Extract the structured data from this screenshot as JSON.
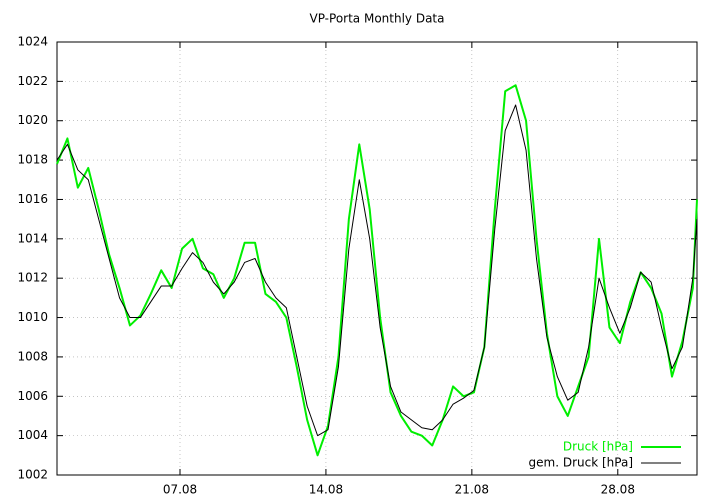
{
  "chart_data": {
    "type": "line",
    "title": "VP-Porta Monthly Data",
    "x": [
      1.1,
      1.6,
      2.1,
      2.6,
      3.1,
      3.6,
      4.1,
      4.6,
      5.1,
      5.6,
      6.1,
      6.6,
      7.1,
      7.6,
      8.1,
      8.6,
      9.1,
      9.6,
      10.1,
      10.6,
      11.1,
      11.6,
      12.1,
      12.6,
      13.1,
      13.6,
      14.1,
      14.6,
      15.1,
      15.6,
      16.1,
      16.6,
      17.1,
      17.6,
      18.1,
      18.6,
      19.1,
      19.6,
      20.1,
      20.6,
      21.1,
      21.6,
      22.1,
      22.6,
      23.1,
      23.6,
      24.1,
      24.6,
      25.1,
      25.6,
      26.1,
      26.6,
      27.1,
      27.6,
      28.1,
      28.6,
      29.1,
      29.6,
      30.1,
      30.6,
      31.1,
      31.6,
      31.8
    ],
    "series": [
      {
        "name": "Druck [hPa]",
        "color": "#00ee00",
        "values": [
          1017.8,
          1019.1,
          1016.6,
          1017.6,
          1015.5,
          1013.2,
          1011.5,
          1009.6,
          1010.1,
          1011.2,
          1012.4,
          1011.5,
          1013.5,
          1014.0,
          1012.5,
          1012.2,
          1011.0,
          1012.0,
          1013.8,
          1013.8,
          1011.2,
          1010.8,
          1010.0,
          1007.5,
          1004.8,
          1003.0,
          1004.5,
          1008.0,
          1015.0,
          1018.8,
          1015.5,
          1010.0,
          1006.2,
          1005.0,
          1004.2,
          1004.0,
          1003.5,
          1004.8,
          1006.5,
          1006.0,
          1006.2,
          1008.5,
          1015.5,
          1021.5,
          1021.8,
          1020.0,
          1014.0,
          1009.2,
          1006.0,
          1005.0,
          1006.5,
          1008.0,
          1014.0,
          1009.5,
          1008.7,
          1010.8,
          1012.3,
          1011.5,
          1010.2,
          1007.0,
          1008.8,
          1011.5,
          1016.0
        ]
      },
      {
        "name": "gem. Druck [hPa]",
        "color": "#000000",
        "values": [
          1018.0,
          1018.8,
          1017.5,
          1017.0,
          1015.0,
          1013.0,
          1011.0,
          1010.0,
          1010.0,
          1010.8,
          1011.6,
          1011.6,
          1012.5,
          1013.3,
          1012.8,
          1011.8,
          1011.2,
          1011.8,
          1012.8,
          1013.0,
          1011.8,
          1011.0,
          1010.5,
          1008.0,
          1005.5,
          1004.0,
          1004.3,
          1007.5,
          1013.5,
          1017.0,
          1014.0,
          1009.5,
          1006.5,
          1005.2,
          1004.8,
          1004.4,
          1004.3,
          1004.8,
          1005.6,
          1005.9,
          1006.3,
          1008.5,
          1014.5,
          1019.5,
          1020.8,
          1018.5,
          1013.0,
          1009.0,
          1007.0,
          1005.8,
          1006.2,
          1008.5,
          1012.0,
          1010.5,
          1009.2,
          1010.5,
          1012.3,
          1011.8,
          1009.5,
          1007.4,
          1008.5,
          1012.0,
          1015.0
        ]
      }
    ],
    "xlim": [
      1.1,
      31.8
    ],
    "xticks": [
      {
        "value": 7,
        "label": "07.08"
      },
      {
        "value": 14,
        "label": "14.08"
      },
      {
        "value": 21,
        "label": "21.08"
      },
      {
        "value": 28,
        "label": "28.08"
      }
    ],
    "ylim": [
      1002,
      1024
    ],
    "yticks": [
      1002,
      1004,
      1006,
      1008,
      1010,
      1012,
      1014,
      1016,
      1018,
      1020,
      1022,
      1024
    ],
    "grid": true,
    "legend": "bottom-right"
  }
}
